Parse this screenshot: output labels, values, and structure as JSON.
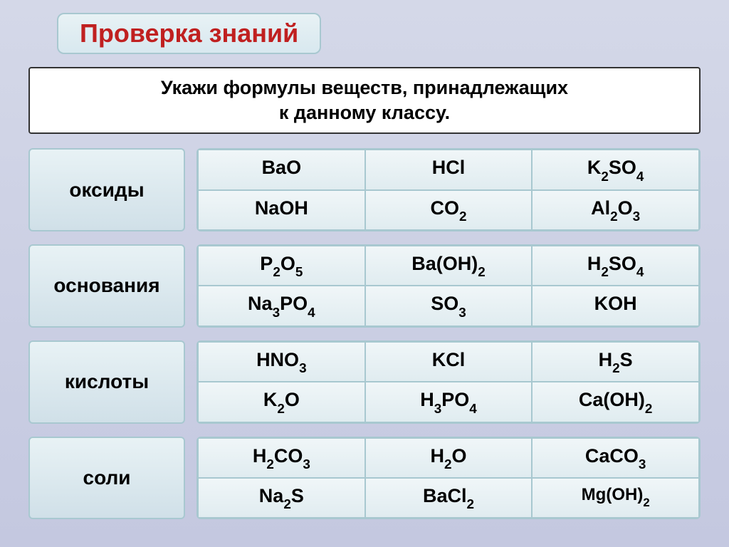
{
  "header": {
    "title": "Проверка знаний"
  },
  "instruction": {
    "line1": "Укажи формулы веществ, принадлежащих",
    "line2": "к данному классу."
  },
  "categories": [
    {
      "label": "оксиды",
      "formulas": [
        {
          "parts": [
            {
              "t": "BaO"
            }
          ]
        },
        {
          "parts": [
            {
              "t": "HCl"
            }
          ]
        },
        {
          "parts": [
            {
              "t": "K"
            },
            {
              "t": "2",
              "sub": true
            },
            {
              "t": "SO"
            },
            {
              "t": "4",
              "sub": true
            }
          ]
        },
        {
          "parts": [
            {
              "t": "NaOH"
            }
          ]
        },
        {
          "parts": [
            {
              "t": "CO"
            },
            {
              "t": "2",
              "sub": true
            }
          ]
        },
        {
          "parts": [
            {
              "t": "Al"
            },
            {
              "t": "2",
              "sub": true
            },
            {
              "t": "O"
            },
            {
              "t": "3",
              "sub": true
            }
          ]
        }
      ]
    },
    {
      "label": "основания",
      "formulas": [
        {
          "parts": [
            {
              "t": "P"
            },
            {
              "t": "2",
              "sub": true
            },
            {
              "t": "O"
            },
            {
              "t": "5",
              "sub": true
            }
          ]
        },
        {
          "parts": [
            {
              "t": "Ba(OH)"
            },
            {
              "t": "2",
              "sub": true
            }
          ]
        },
        {
          "parts": [
            {
              "t": "H"
            },
            {
              "t": "2",
              "sub": true
            },
            {
              "t": "SO"
            },
            {
              "t": "4",
              "sub": true
            }
          ]
        },
        {
          "parts": [
            {
              "t": "Na"
            },
            {
              "t": "3",
              "sub": true
            },
            {
              "t": "PO"
            },
            {
              "t": "4",
              "sub": true
            }
          ]
        },
        {
          "parts": [
            {
              "t": "SO"
            },
            {
              "t": "3",
              "sub": true
            }
          ]
        },
        {
          "parts": [
            {
              "t": "KOH"
            }
          ]
        }
      ]
    },
    {
      "label": "кислоты",
      "formulas": [
        {
          "parts": [
            {
              "t": "HNO"
            },
            {
              "t": "3",
              "sub": true
            }
          ]
        },
        {
          "parts": [
            {
              "t": "KCl"
            }
          ]
        },
        {
          "parts": [
            {
              "t": "H"
            },
            {
              "t": "2",
              "sub": true
            },
            {
              "t": "S"
            }
          ]
        },
        {
          "parts": [
            {
              "t": "K"
            },
            {
              "t": "2",
              "sub": true
            },
            {
              "t": "O"
            }
          ]
        },
        {
          "parts": [
            {
              "t": "H"
            },
            {
              "t": "3",
              "sub": true
            },
            {
              "t": "PO"
            },
            {
              "t": "4",
              "sub": true
            }
          ]
        },
        {
          "parts": [
            {
              "t": "Ca(OH)"
            },
            {
              "t": "2",
              "sub": true
            }
          ]
        }
      ]
    },
    {
      "label": "соли",
      "formulas": [
        {
          "parts": [
            {
              "t": "H"
            },
            {
              "t": "2",
              "sub": true
            },
            {
              "t": "CO"
            },
            {
              "t": "3",
              "sub": true
            }
          ]
        },
        {
          "parts": [
            {
              "t": "H"
            },
            {
              "t": "2",
              "sub": true
            },
            {
              "t": "O"
            }
          ]
        },
        {
          "parts": [
            {
              "t": "CaCO"
            },
            {
              "t": "3",
              "sub": true
            }
          ]
        },
        {
          "parts": [
            {
              "t": "Na"
            },
            {
              "t": "2",
              "sub": true
            },
            {
              "t": "S"
            }
          ]
        },
        {
          "parts": [
            {
              "t": "BaCl"
            },
            {
              "t": "2",
              "sub": true
            }
          ]
        },
        {
          "parts": [
            {
              "t": "Mg(OH)"
            },
            {
              "t": "2",
              "sub": true
            }
          ],
          "smaller": true
        }
      ]
    }
  ],
  "colors": {
    "header_text": "#c02020",
    "box_bg_light": "#e8f2f5",
    "box_bg_dark": "#d0e0e8",
    "border": "#a8c8d0",
    "page_bg": "#c4c8e0"
  }
}
